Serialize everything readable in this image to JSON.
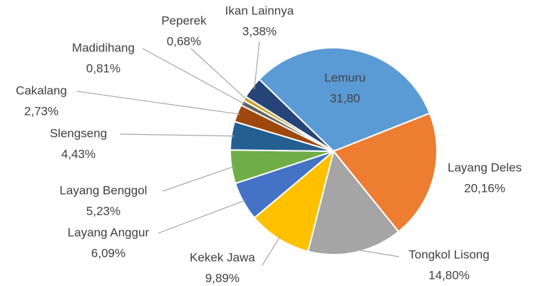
{
  "chart_data": {
    "type": "pie",
    "categories": [
      "Lemuru",
      "Layang Deles",
      "Tongkol Lisong",
      "Kekek Jawa",
      "Layang Anggur",
      "Layang Benggol",
      "Slengseng",
      "Cakalang",
      "Madidihang",
      "Peperek",
      "Ikan Lainnya"
    ],
    "values": [
      31.8,
      20.16,
      14.8,
      9.89,
      6.09,
      5.23,
      4.43,
      2.73,
      0.81,
      0.68,
      3.38
    ],
    "value_labels": [
      "31,80",
      "20,16%",
      "14,80%",
      "9,89%",
      "6,09%",
      "5,23%",
      "4,43%",
      "2,73%",
      "0,81%",
      "0,68%",
      "3,38%"
    ],
    "colors": [
      "#5b9bd5",
      "#ed7d31",
      "#a5a5a5",
      "#ffc000",
      "#4472c4",
      "#70ad47",
      "#255e91",
      "#9e480e",
      "#636363",
      "#c9a227",
      "#264478"
    ]
  }
}
